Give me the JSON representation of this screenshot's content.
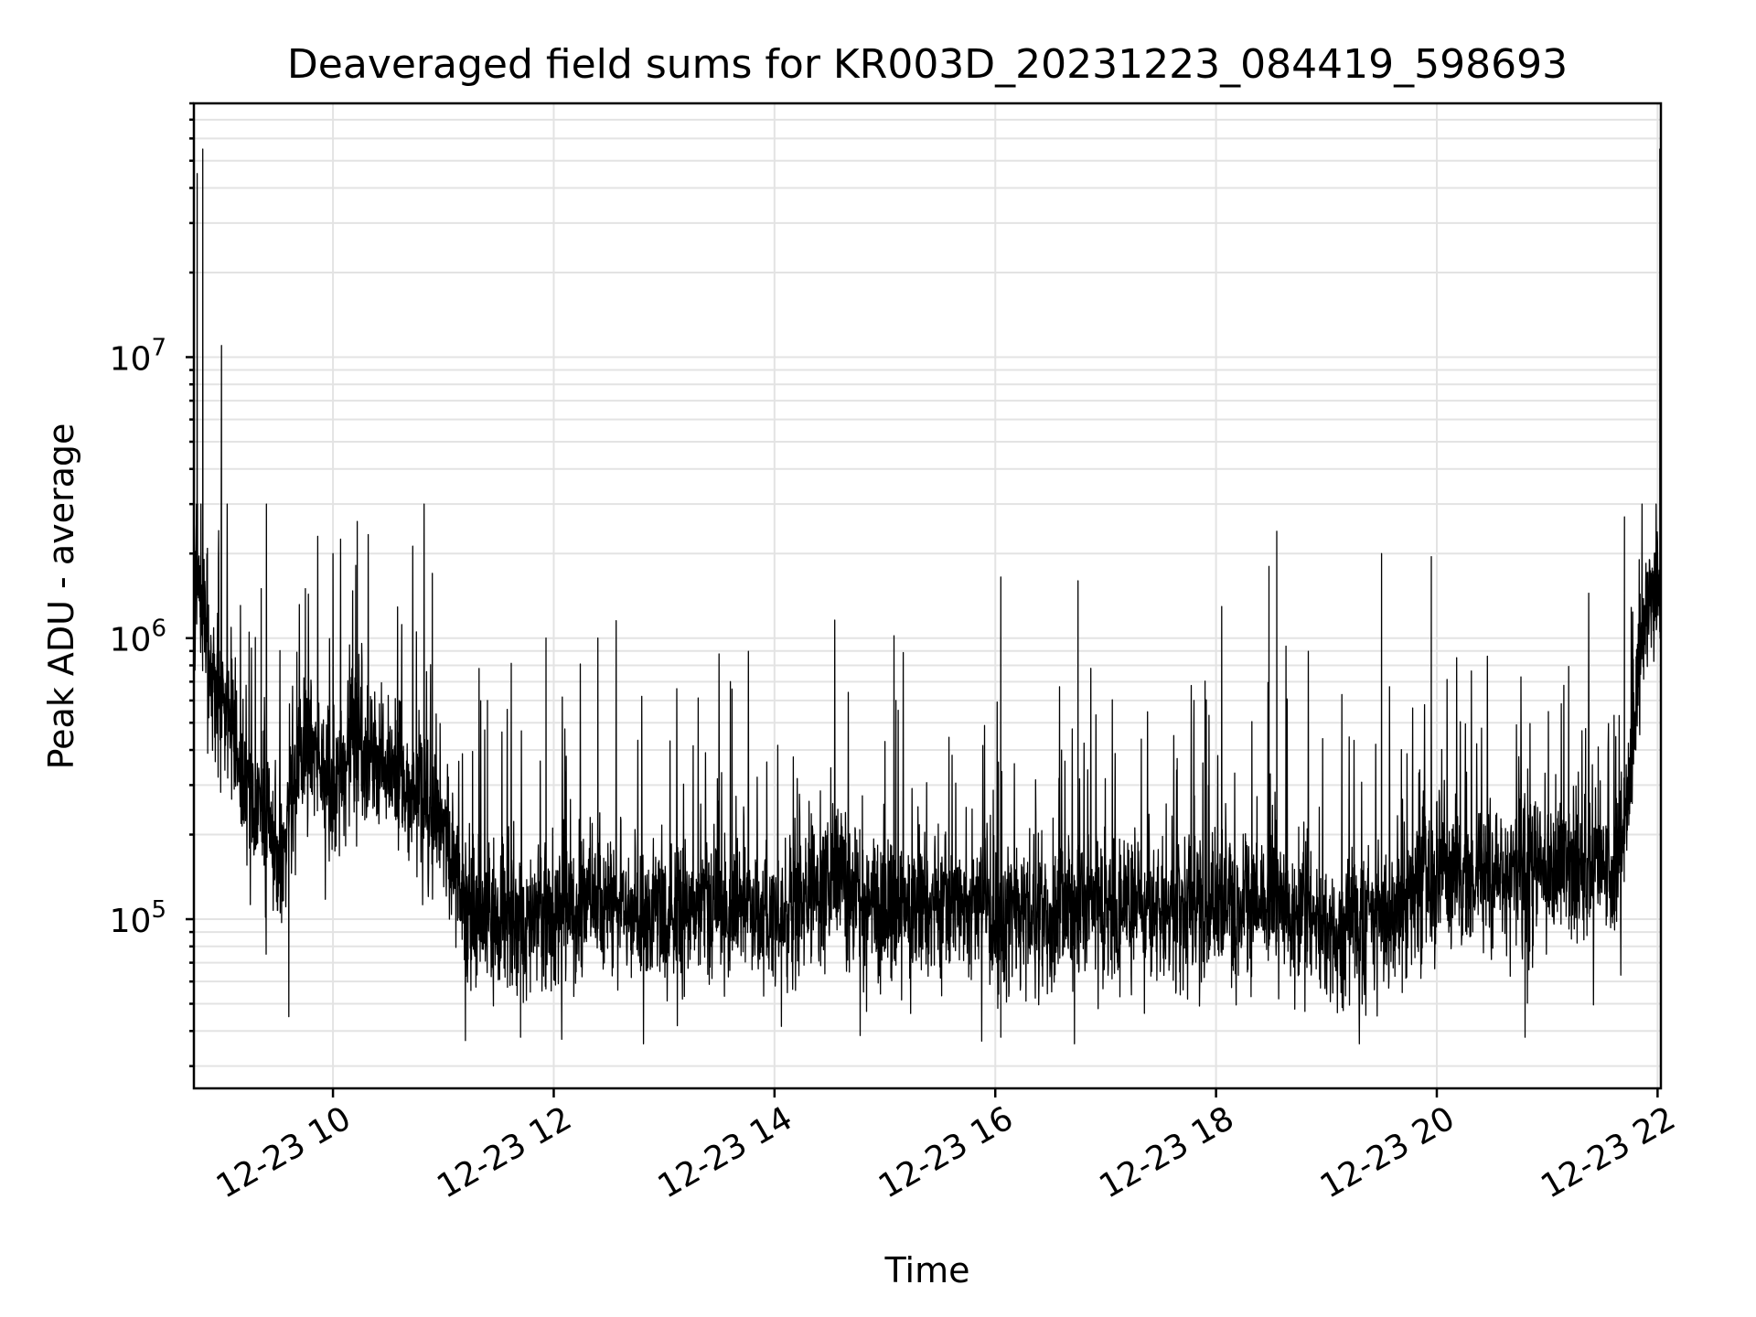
{
  "chart_data": {
    "type": "line",
    "title": "Deaveraged field sums for KR003D_20231223_084419_598693",
    "xlabel": "Time",
    "ylabel": "Peak ADU - average",
    "yscale": "log",
    "grid": true,
    "x_start": "2023-12-23 08:44",
    "x_end": "2023-12-23 22:02",
    "xlim_hours": [
      8.74,
      22.03
    ],
    "ylim": [
      25000,
      80000000
    ],
    "x_ticks": [
      {
        "hour": 10,
        "label": "12-23 10"
      },
      {
        "hour": 12,
        "label": "12-23 12"
      },
      {
        "hour": 14,
        "label": "12-23 14"
      },
      {
        "hour": 16,
        "label": "12-23 16"
      },
      {
        "hour": 18,
        "label": "12-23 18"
      },
      {
        "hour": 20,
        "label": "12-23 20"
      },
      {
        "hour": 22,
        "label": "12-23 22"
      }
    ],
    "y_ticks": [
      {
        "value": 100000,
        "base": "10",
        "exp": "5"
      },
      {
        "value": 1000000,
        "base": "10",
        "exp": "6"
      },
      {
        "value": 10000000,
        "base": "10",
        "exp": "7"
      }
    ],
    "series": [
      {
        "time_hours": [
          8.74,
          8.78,
          8.82,
          8.85,
          8.88,
          8.9,
          8.95,
          9.0,
          9.05,
          9.1,
          9.15,
          9.2,
          9.3,
          9.4,
          9.5,
          9.55,
          9.6,
          9.7,
          9.8,
          9.9,
          10.0,
          10.1,
          10.2,
          10.3,
          10.4,
          10.5,
          10.6,
          10.7,
          10.8,
          10.9,
          11.0,
          11.1,
          11.2,
          11.4,
          11.6,
          11.8,
          12.0,
          12.5,
          13.0,
          13.5,
          14.0,
          14.5,
          15.0,
          15.5,
          16.0,
          16.5,
          17.0,
          17.5,
          18.0,
          18.5,
          19.0,
          19.5,
          20.0,
          20.5,
          21.0,
          21.3,
          21.5,
          21.6,
          21.7,
          21.8,
          21.9,
          22.0
        ],
        "level": [
          1500000,
          1400000,
          1300000,
          1100000,
          900000,
          700000,
          650000,
          600000,
          550000,
          450000,
          380000,
          300000,
          250000,
          220000,
          180000,
          150000,
          250000,
          350000,
          450000,
          350000,
          300000,
          320000,
          450000,
          420000,
          380000,
          330000,
          300000,
          280000,
          260000,
          240000,
          220000,
          160000,
          120000,
          100000,
          95000,
          100000,
          110000,
          115000,
          105000,
          110000,
          105000,
          140000,
          110000,
          120000,
          100000,
          105000,
          110000,
          105000,
          110000,
          120000,
          90000,
          100000,
          150000,
          140000,
          150000,
          155000,
          160000,
          140000,
          200000,
          600000,
          1300000,
          1500000
        ],
        "spikes": [
          {
            "hour": 8.77,
            "value": 45000000
          },
          {
            "hour": 8.82,
            "value": 55000000
          },
          {
            "hour": 8.99,
            "value": 11000000
          },
          {
            "hour": 9.35,
            "value": 1500000
          },
          {
            "hour": 9.75,
            "value": 1500000
          },
          {
            "hour": 10.0,
            "value": 2000000
          },
          {
            "hour": 10.22,
            "value": 2600000
          },
          {
            "hour": 10.9,
            "value": 1700000
          },
          {
            "hour": 11.4,
            "value": 600000
          },
          {
            "hour": 11.93,
            "value": 1000000
          },
          {
            "hour": 12.4,
            "value": 1000000
          },
          {
            "hour": 13.6,
            "value": 700000
          },
          {
            "hour": 15.1,
            "value": 600000
          },
          {
            "hour": 16.05,
            "value": 1650000
          },
          {
            "hour": 16.75,
            "value": 1600000
          },
          {
            "hour": 17.8,
            "value": 600000
          },
          {
            "hour": 18.48,
            "value": 1800000
          },
          {
            "hour": 18.55,
            "value": 2400000
          },
          {
            "hour": 19.5,
            "value": 2000000
          },
          {
            "hour": 19.95,
            "value": 1950000
          },
          {
            "hour": 21.7,
            "value": 2700000
          },
          {
            "hour": 22.02,
            "value": 55000000
          }
        ],
        "dips": [
          {
            "hour": 9.6,
            "value": 45000
          },
          {
            "hour": 11.2,
            "value": 37000
          },
          {
            "hour": 11.7,
            "value": 38000
          },
          {
            "hour": 16.05,
            "value": 38000
          },
          {
            "hour": 20.8,
            "value": 38000
          }
        ]
      }
    ]
  }
}
